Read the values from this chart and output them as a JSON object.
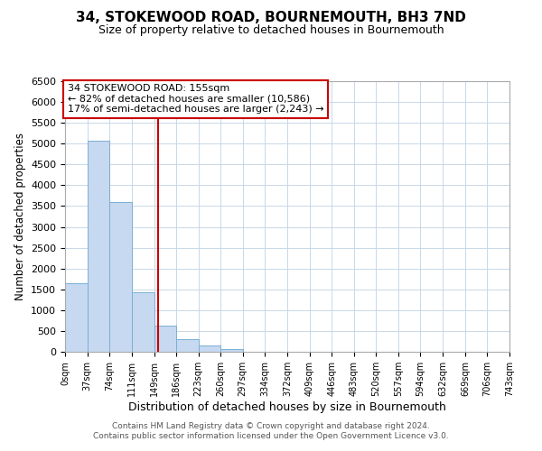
{
  "title": "34, STOKEWOOD ROAD, BOURNEMOUTH, BH3 7ND",
  "subtitle": "Size of property relative to detached houses in Bournemouth",
  "xlabel": "Distribution of detached houses by size in Bournemouth",
  "ylabel": "Number of detached properties",
  "bin_edges": [
    0,
    37,
    74,
    111,
    149,
    186,
    223,
    260,
    297,
    334,
    372,
    409,
    446,
    483,
    520,
    557,
    594,
    632,
    669,
    706,
    743
  ],
  "bin_labels": [
    "0sqm",
    "37sqm",
    "74sqm",
    "111sqm",
    "149sqm",
    "186sqm",
    "223sqm",
    "260sqm",
    "297sqm",
    "334sqm",
    "372sqm",
    "409sqm",
    "446sqm",
    "483sqm",
    "520sqm",
    "557sqm",
    "594sqm",
    "632sqm",
    "669sqm",
    "706sqm",
    "743sqm"
  ],
  "bar_heights": [
    1650,
    5080,
    3600,
    1430,
    620,
    300,
    150,
    55,
    0,
    0,
    0,
    0,
    0,
    0,
    0,
    0,
    0,
    0,
    0,
    0
  ],
  "bar_color": "#c6d9f0",
  "bar_edge_color": "#7bafd4",
  "vline_x": 155,
  "vline_color": "#cc0000",
  "ylim": [
    0,
    6500
  ],
  "yticks": [
    0,
    500,
    1000,
    1500,
    2000,
    2500,
    3000,
    3500,
    4000,
    4500,
    5000,
    5500,
    6000,
    6500
  ],
  "annotation_title": "34 STOKEWOOD ROAD: 155sqm",
  "annotation_line1": "← 82% of detached houses are smaller (10,586)",
  "annotation_line2": "17% of semi-detached houses are larger (2,243) →",
  "annotation_box_color": "#cc0000",
  "footer1": "Contains HM Land Registry data © Crown copyright and database right 2024.",
  "footer2": "Contains public sector information licensed under the Open Government Licence v3.0.",
  "background_color": "#ffffff",
  "grid_color": "#c8d8e8"
}
